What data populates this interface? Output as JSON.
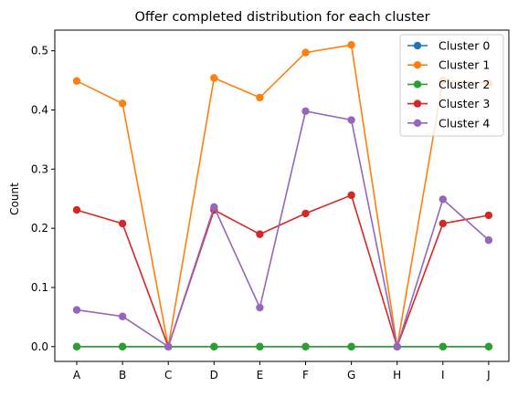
{
  "chart_data": {
    "type": "line",
    "title": "Offer completed distribution for each cluster",
    "xlabel": "",
    "ylabel": "Count",
    "categories": [
      "A",
      "B",
      "C",
      "D",
      "E",
      "F",
      "G",
      "H",
      "I",
      "J"
    ],
    "ylim": [
      -0.025,
      0.535
    ],
    "yticks": [
      0.0,
      0.1,
      0.2,
      0.3,
      0.4,
      0.5
    ],
    "ytick_labels": [
      "0.0",
      "0.1",
      "0.2",
      "0.3",
      "0.4",
      "0.5"
    ],
    "grid": false,
    "legend_position": "top-right",
    "series": [
      {
        "name": "Cluster 0",
        "color": "#1f77b4",
        "values": [
          0,
          0,
          0,
          0,
          0,
          0,
          0,
          0,
          0,
          0
        ]
      },
      {
        "name": "Cluster 1",
        "color": "#ff7f0e",
        "values": [
          0.449,
          0.411,
          0.0,
          0.454,
          0.421,
          0.497,
          0.51,
          0.0,
          0.45,
          0.445
        ]
      },
      {
        "name": "Cluster 2",
        "color": "#2ca02c",
        "values": [
          0,
          0,
          0,
          0,
          0,
          0,
          0,
          0,
          0,
          0
        ]
      },
      {
        "name": "Cluster 3",
        "color": "#d62728",
        "values": [
          0.231,
          0.208,
          0.0,
          0.231,
          0.19,
          0.225,
          0.256,
          0.0,
          0.208,
          0.222
        ]
      },
      {
        "name": "Cluster 4",
        "color": "#9467bd",
        "values": [
          0.062,
          0.051,
          0.0,
          0.236,
          0.066,
          0.398,
          0.383,
          0.0,
          0.249,
          0.18
        ]
      }
    ]
  }
}
